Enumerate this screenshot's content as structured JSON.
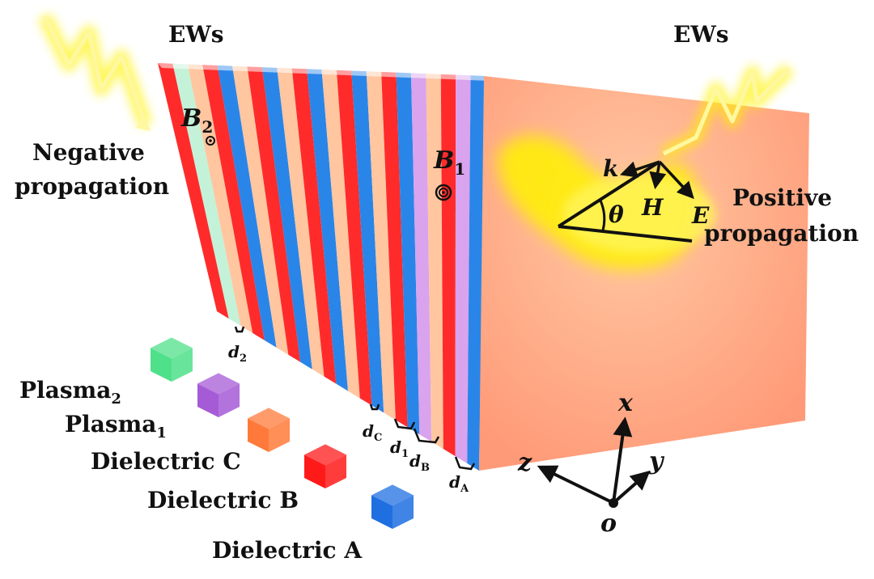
{
  "labels": {
    "ews_left": "EWs",
    "ews_right": "EWs",
    "negative_line1": "Negative",
    "negative_line2": "propagation",
    "positive_line1": "Positive",
    "positive_line2": "propagation"
  },
  "points": {
    "b2_main": "B",
    "b2_sub": "2",
    "b1_main": "B",
    "b1_sub": "1"
  },
  "wave": {
    "k": "k",
    "h": "H",
    "e": "E",
    "theta": "θ"
  },
  "thickness": {
    "d2_main": "d",
    "d2_sub": "2",
    "dc_main": "d",
    "dc_sub": "C",
    "d1_main": "d",
    "d1_sub": "1",
    "db_main": "d",
    "db_sub": "B",
    "da_main": "d",
    "da_sub": "A"
  },
  "legend": [
    {
      "main": "Plasma",
      "sub": "2",
      "color": "#4fe08a"
    },
    {
      "main": "Plasma",
      "sub": "1",
      "color": "#a65bd6"
    },
    {
      "main": "Dielectric C",
      "sub": "",
      "color": "#ff7a3a"
    },
    {
      "main": "Dielectric B",
      "sub": "",
      "color": "#ff1a1a"
    },
    {
      "main": "Dielectric A",
      "sub": "",
      "color": "#1f6fe0"
    }
  ],
  "axes": {
    "x": "x",
    "y": "y",
    "z": "z",
    "origin": "o"
  },
  "colors": {
    "dielectric_a": "#2a85e8",
    "dielectric_b": "#ff2b2b",
    "dielectric_c": "#ffc6a0",
    "plasma_1": "#d9a3ee",
    "plasma_2": "#c4f2d8",
    "front_face": "#ffa583",
    "glow": "#fff200"
  }
}
